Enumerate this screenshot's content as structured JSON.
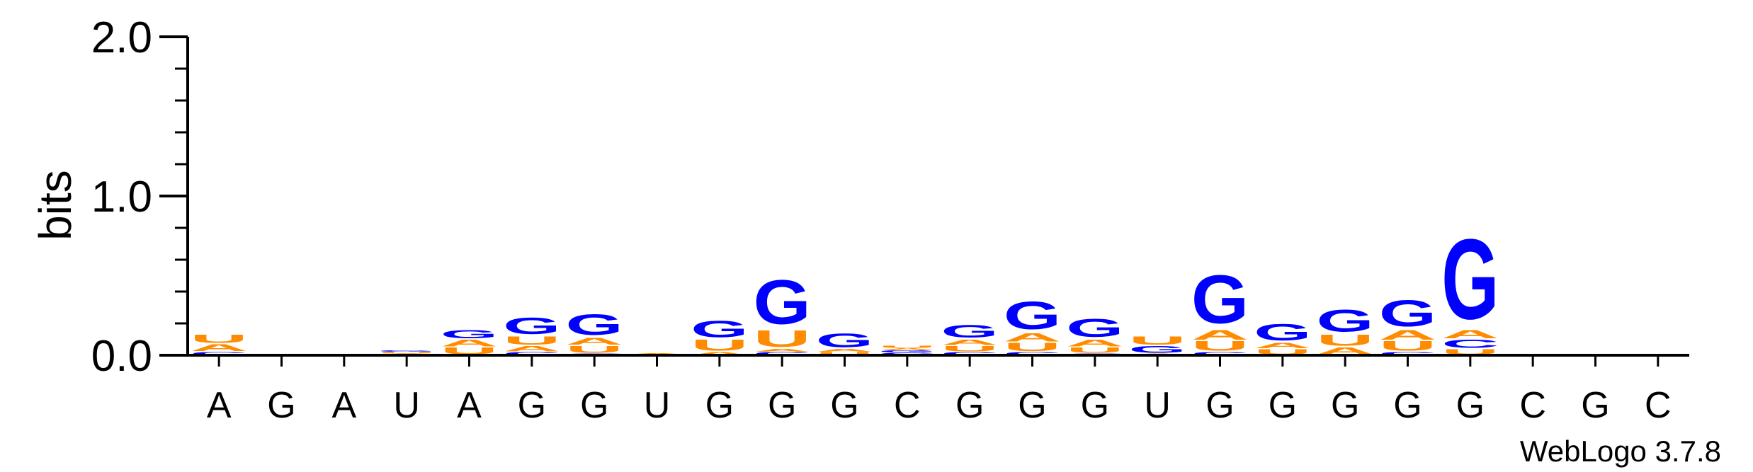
{
  "chart_data": {
    "type": "sequence-logo",
    "ylabel": "bits",
    "ylim": [
      0,
      2.0
    ],
    "yticks": [
      "0.0",
      "1.0",
      "2.0"
    ],
    "colors": {
      "A": "#ff8c00",
      "U": "#ff8c00",
      "G": "#0000ff",
      "C": "#0000ff"
    },
    "watermark": "WebLogo 3.7.8",
    "positions": [
      {
        "label": "A",
        "stack": [
          {
            "base": "C",
            "bits": 0.02
          },
          {
            "base": "A",
            "bits": 0.05
          },
          {
            "base": "U",
            "bits": 0.06
          }
        ]
      },
      {
        "label": "G",
        "stack": []
      },
      {
        "label": "A",
        "stack": []
      },
      {
        "label": "U",
        "stack": [
          {
            "base": "A",
            "bits": 0.01
          },
          {
            "base": "U",
            "bits": 0.01
          },
          {
            "base": "G",
            "bits": 0.01
          }
        ]
      },
      {
        "label": "A",
        "stack": [
          {
            "base": "U",
            "bits": 0.05
          },
          {
            "base": "A",
            "bits": 0.05
          },
          {
            "base": "G",
            "bits": 0.06
          }
        ]
      },
      {
        "label": "G",
        "stack": [
          {
            "base": "C",
            "bits": 0.02
          },
          {
            "base": "A",
            "bits": 0.04
          },
          {
            "base": "U",
            "bits": 0.06
          },
          {
            "base": "G",
            "bits": 0.12
          }
        ]
      },
      {
        "label": "G",
        "stack": [
          {
            "base": "C",
            "bits": 0.01
          },
          {
            "base": "U",
            "bits": 0.05
          },
          {
            "base": "A",
            "bits": 0.05
          },
          {
            "base": "G",
            "bits": 0.15
          }
        ]
      },
      {
        "label": "U",
        "stack": [
          {
            "base": "U",
            "bits": 0.005
          },
          {
            "base": "A",
            "bits": 0.005
          }
        ]
      },
      {
        "label": "G",
        "stack": [
          {
            "base": "A",
            "bits": 0.02
          },
          {
            "base": "U",
            "bits": 0.08
          },
          {
            "base": "G",
            "bits": 0.12
          }
        ]
      },
      {
        "label": "G",
        "stack": [
          {
            "base": "C",
            "bits": 0.02
          },
          {
            "base": "A",
            "bits": 0.02
          },
          {
            "base": "U",
            "bits": 0.12
          },
          {
            "base": "G",
            "bits": 0.32
          }
        ]
      },
      {
        "label": "G",
        "stack": [
          {
            "base": "U",
            "bits": 0.02
          },
          {
            "base": "A",
            "bits": 0.02
          },
          {
            "base": "G",
            "bits": 0.1
          }
        ]
      },
      {
        "label": "C",
        "stack": [
          {
            "base": "C",
            "bits": 0.015
          },
          {
            "base": "G",
            "bits": 0.015
          },
          {
            "base": "A",
            "bits": 0.015
          },
          {
            "base": "U",
            "bits": 0.015
          }
        ]
      },
      {
        "label": "G",
        "stack": [
          {
            "base": "C",
            "bits": 0.02
          },
          {
            "base": "U",
            "bits": 0.04
          },
          {
            "base": "A",
            "bits": 0.04
          },
          {
            "base": "G",
            "bits": 0.09
          }
        ]
      },
      {
        "label": "G",
        "stack": [
          {
            "base": "C",
            "bits": 0.02
          },
          {
            "base": "U",
            "bits": 0.06
          },
          {
            "base": "A",
            "bits": 0.06
          },
          {
            "base": "G",
            "bits": 0.2
          }
        ]
      },
      {
        "label": "G",
        "stack": [
          {
            "base": "C",
            "bits": 0.01
          },
          {
            "base": "U",
            "bits": 0.04
          },
          {
            "base": "A",
            "bits": 0.05
          },
          {
            "base": "G",
            "bits": 0.13
          }
        ]
      },
      {
        "label": "U",
        "stack": [
          {
            "base": "A",
            "bits": 0.01
          },
          {
            "base": "G",
            "bits": 0.05
          },
          {
            "base": "U",
            "bits": 0.06
          }
        ]
      },
      {
        "label": "G",
        "stack": [
          {
            "base": "C",
            "bits": 0.02
          },
          {
            "base": "U",
            "bits": 0.07
          },
          {
            "base": "A",
            "bits": 0.07
          },
          {
            "base": "G",
            "bits": 0.35
          }
        ]
      },
      {
        "label": "G",
        "stack": [
          {
            "base": "U",
            "bits": 0.04
          },
          {
            "base": "A",
            "bits": 0.04
          },
          {
            "base": "G",
            "bits": 0.12
          }
        ]
      },
      {
        "label": "G",
        "stack": [
          {
            "base": "A",
            "bits": 0.05
          },
          {
            "base": "U",
            "bits": 0.08
          },
          {
            "base": "G",
            "bits": 0.16
          }
        ]
      },
      {
        "label": "G",
        "stack": [
          {
            "base": "C",
            "bits": 0.02
          },
          {
            "base": "U",
            "bits": 0.07
          },
          {
            "base": "A",
            "bits": 0.07
          },
          {
            "base": "G",
            "bits": 0.19
          }
        ]
      },
      {
        "label": "G",
        "stack": [
          {
            "base": "U",
            "bits": 0.04
          },
          {
            "base": "C",
            "bits": 0.06
          },
          {
            "base": "A",
            "bits": 0.06
          },
          {
            "base": "G",
            "bits": 0.58
          }
        ]
      },
      {
        "label": "C",
        "stack": []
      },
      {
        "label": "G",
        "stack": []
      },
      {
        "label": "C",
        "stack": []
      }
    ]
  }
}
